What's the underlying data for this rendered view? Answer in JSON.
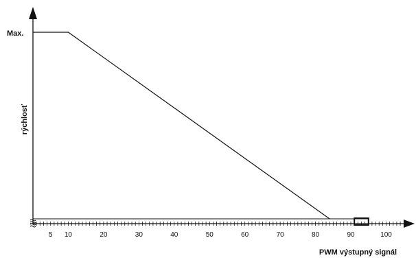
{
  "chart_data": {
    "type": "line",
    "title": "",
    "xlabel": "PWM výstupný signál",
    "ylabel": "rýchlosť",
    "y_max_label": "Max.",
    "x_tick_labels": [
      5,
      10,
      20,
      30,
      40,
      50,
      60,
      70,
      80,
      90,
      100
    ],
    "xlim": [
      0,
      100
    ],
    "ylim": [
      0,
      100
    ],
    "grid": false,
    "series": [
      {
        "x": [
          0,
          10,
          84
        ],
        "y": [
          100,
          100,
          0
        ]
      }
    ],
    "box_range": [
      91,
      95
    ],
    "line_color": "#111111"
  }
}
